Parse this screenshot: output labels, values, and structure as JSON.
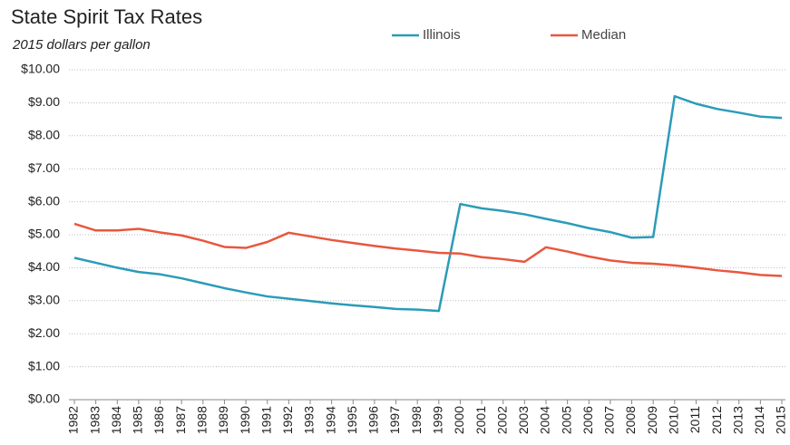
{
  "chart_data": {
    "type": "line",
    "title": "State Spirit Tax Rates",
    "subtitle": "2015 dollars per gallon",
    "categories": [
      "1982",
      "1983",
      "1984",
      "1985",
      "1986",
      "1987",
      "1988",
      "1989",
      "1990",
      "1991",
      "1992",
      "1993",
      "1994",
      "1995",
      "1996",
      "1997",
      "1998",
      "1999",
      "2000",
      "2001",
      "2002",
      "2003",
      "2004",
      "2005",
      "2006",
      "2007",
      "2008",
      "2009",
      "2010",
      "2011",
      "2012",
      "2013",
      "2014",
      "2015"
    ],
    "series": [
      {
        "name": "Illinois",
        "color": "#2b9bb8",
        "values": [
          4.3,
          4.15,
          4.0,
          3.87,
          3.8,
          3.68,
          3.53,
          3.38,
          3.25,
          3.13,
          3.06,
          2.99,
          2.92,
          2.86,
          2.81,
          2.75,
          2.73,
          2.69,
          5.93,
          5.8,
          5.72,
          5.62,
          5.48,
          5.35,
          5.2,
          5.08,
          4.91,
          4.93,
          9.2,
          8.97,
          8.81,
          8.7,
          8.58,
          8.54
        ]
      },
      {
        "name": "Median",
        "color": "#e8573e",
        "values": [
          5.33,
          5.13,
          5.13,
          5.18,
          5.07,
          4.98,
          4.82,
          4.63,
          4.6,
          4.78,
          5.06,
          4.95,
          4.84,
          4.75,
          4.66,
          4.58,
          4.52,
          4.45,
          4.43,
          4.32,
          4.26,
          4.18,
          4.62,
          4.49,
          4.34,
          4.22,
          4.15,
          4.12,
          4.07,
          4.0,
          3.92,
          3.86,
          3.78,
          3.75
        ]
      }
    ],
    "ylim": [
      0,
      10
    ],
    "yticks": [
      {
        "value": 0,
        "label": "$0.00"
      },
      {
        "value": 1,
        "label": "$1.00"
      },
      {
        "value": 2,
        "label": "$2.00"
      },
      {
        "value": 3,
        "label": "$3.00"
      },
      {
        "value": 4,
        "label": "$4.00"
      },
      {
        "value": 5,
        "label": "$5.00"
      },
      {
        "value": 6,
        "label": "$6.00"
      },
      {
        "value": 7,
        "label": "$7.00"
      },
      {
        "value": 8,
        "label": "$8.00"
      },
      {
        "value": 9,
        "label": "$9.00"
      },
      {
        "value": 10,
        "label": "$10.00"
      }
    ],
    "grid": true,
    "legend": "top"
  }
}
